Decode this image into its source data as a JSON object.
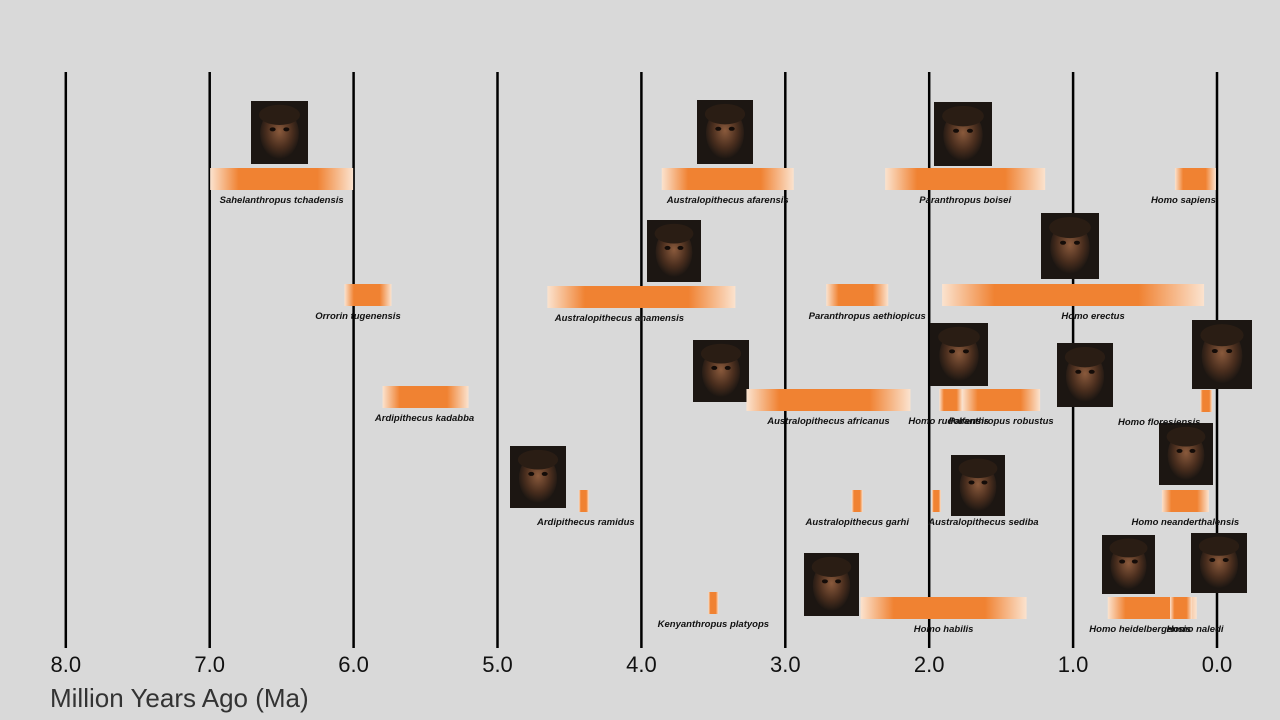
{
  "chart_data": {
    "type": "timeline",
    "xlabel": "Million Years Ago (Ma)",
    "x_ticks": [
      "8.0",
      "7.0",
      "6.0",
      "5.0",
      "4.0",
      "3.0",
      "2.0",
      "1.0",
      "0.0"
    ],
    "xlim": [
      8.0,
      0.0
    ],
    "x_direction": "reversed (older on left)",
    "grid": "vertical lines at each tick",
    "bar_color": "#f08232",
    "species": [
      {
        "name": "Sahelanthropus tchadensis",
        "start": 7.0,
        "end": 6.0,
        "portrait": true
      },
      {
        "name": "Australopithecus afarensis",
        "start": 3.85,
        "end": 2.95,
        "portrait": true
      },
      {
        "name": "Paranthropus boisei",
        "start": 2.3,
        "end": 1.2,
        "portrait": true
      },
      {
        "name": "Homo sapiens",
        "start": 0.3,
        "end": 0.0,
        "portrait": false
      },
      {
        "name": "Orrorin tugenensis",
        "start": 6.1,
        "end": 5.7,
        "portrait": false
      },
      {
        "name": "Australopithecus anamensis",
        "start": 4.2,
        "end": 3.8,
        "portrait": true
      },
      {
        "name": "Paranthropus aethiopicus",
        "start": 2.7,
        "end": 2.3,
        "portrait": false
      },
      {
        "name": "Homo erectus",
        "start": 1.9,
        "end": 0.1,
        "portrait": true
      },
      {
        "name": "Ardipithecus kadabba",
        "start": 5.8,
        "end": 5.2,
        "portrait": false
      },
      {
        "name": "Australopithecus africanus",
        "start": 3.3,
        "end": 2.1,
        "portrait": true
      },
      {
        "name": "Homo rudolfensis",
        "start": 1.9,
        "end": 1.8,
        "portrait": true
      },
      {
        "name": "Paranthropus robustus",
        "start": 1.8,
        "end": 1.2,
        "portrait": true
      },
      {
        "name": "Homo floresiensis",
        "start": 0.1,
        "end": 0.05,
        "portrait": true
      },
      {
        "name": "Ardipithecus ramidus",
        "start": 4.4,
        "end": 4.4,
        "portrait": true
      },
      {
        "name": "Australopithecus garhi",
        "start": 2.5,
        "end": 2.5,
        "portrait": false
      },
      {
        "name": "Australopithecus sediba",
        "start": 1.95,
        "end": 1.95,
        "portrait": true
      },
      {
        "name": "Homo neanderthalensis",
        "start": 0.4,
        "end": 0.04,
        "portrait": true
      },
      {
        "name": "Kenyanthropus platyops",
        "start": 3.5,
        "end": 3.5,
        "portrait": false
      },
      {
        "name": "Homo habilis",
        "start": 2.4,
        "end": 1.4,
        "portrait": true
      },
      {
        "name": "Homo heidelbergensis",
        "start": 0.7,
        "end": 0.2,
        "portrait": true
      },
      {
        "name": "Homo naledi",
        "start": 0.3,
        "end": 0.2,
        "portrait": true
      }
    ]
  }
}
